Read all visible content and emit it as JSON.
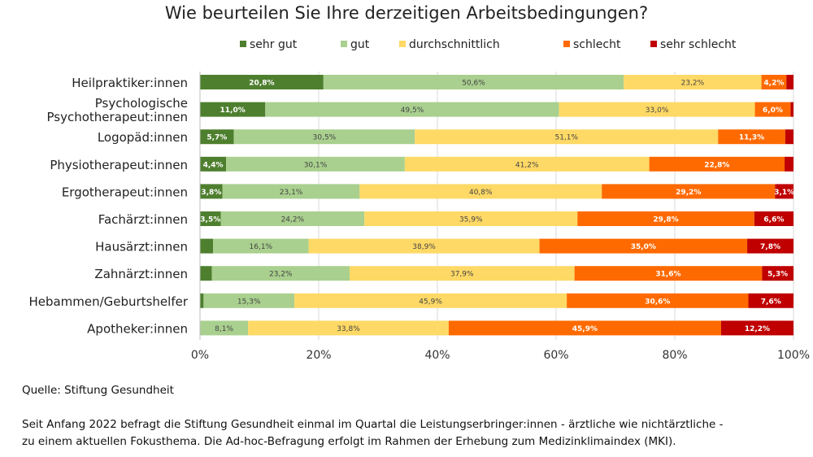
{
  "chart_data": {
    "type": "bar",
    "orientation": "horizontal-stacked-100",
    "title": "Wie beurteilen Sie Ihre derzeitigen Arbeitsbedingungen?",
    "categories": [
      "Heilpraktiker:innen",
      "Psychologische Psychotherapeut:innen",
      "Logopäd:innen",
      "Physiotherapeut:innen",
      "Ergotherapeut:innen",
      "Fachärzt:innen",
      "Hausärzt:innen",
      "Zahnärzt:innen",
      "Hebammen/Geburtshelfer",
      "Apotheker:innen"
    ],
    "series": [
      {
        "name": "sehr gut",
        "color": "#4e7f2e",
        "values": [
          20.8,
          11.0,
          5.7,
          4.4,
          3.8,
          3.5,
          2.2,
          2.0,
          0.6,
          0
        ],
        "labels": [
          "20,8%",
          "11,0%",
          "5,7%",
          "4,4%",
          "3,8%",
          "3,5%",
          null,
          null,
          null,
          null
        ]
      },
      {
        "name": "gut",
        "color": "#a9d08e",
        "values": [
          50.6,
          49.5,
          30.5,
          30.1,
          23.1,
          24.2,
          16.1,
          23.2,
          15.3,
          8.1
        ],
        "labels": [
          "50,6%",
          "49,5%",
          "30,5%",
          "30,1%",
          "23,1%",
          "24,2%",
          "16,1%",
          "23,2%",
          "15,3%",
          "8,1%"
        ]
      },
      {
        "name": "durchschnittlich",
        "color": "#ffd966",
        "values": [
          23.2,
          33.0,
          51.1,
          41.2,
          40.8,
          35.9,
          38.9,
          37.9,
          45.9,
          33.8
        ],
        "labels": [
          "23,2%",
          "33,0%",
          "51,1%",
          "41,2%",
          "40,8%",
          "35,9%",
          "38,9%",
          "37,9%",
          "45,9%",
          "33,8%"
        ]
      },
      {
        "name": "schlecht",
        "color": "#ff6a00",
        "values": [
          4.2,
          6.0,
          11.3,
          22.8,
          29.2,
          29.8,
          35.0,
          31.6,
          30.6,
          45.9
        ],
        "labels": [
          "4,2%",
          "6,0%",
          "11,3%",
          "22,8%",
          "29,2%",
          "29,8%",
          "35,0%",
          "31,6%",
          "30,6%",
          "45,9%"
        ]
      },
      {
        "name": "sehr schlecht",
        "color": "#c00000",
        "values": [
          1.2,
          0.5,
          1.4,
          1.5,
          3.1,
          6.6,
          7.8,
          5.3,
          7.6,
          12.2
        ],
        "labels": [
          null,
          null,
          null,
          null,
          "3,1%",
          "6,6%",
          "7,8%",
          "5,3%",
          "7,6%",
          "12,2%"
        ]
      }
    ],
    "xlim": [
      0,
      100
    ],
    "xticks": [
      "0%",
      "20%",
      "40%",
      "60%",
      "80%",
      "100%"
    ],
    "grid": true,
    "legend": "top"
  },
  "source": "Quelle: Stiftung Gesundheit",
  "footnote": [
    "Seit Anfang 2022 befragt die Stiftung Gesundheit einmal im Quartal die Leistungserbringer:innen - ärztliche wie nichtärztliche -",
    "zu einem aktuellen Fokusthema. Die Ad-hoc-Befragung erfolgt im Rahmen der Erhebung zum Medizinklimaindex (MKI)."
  ]
}
